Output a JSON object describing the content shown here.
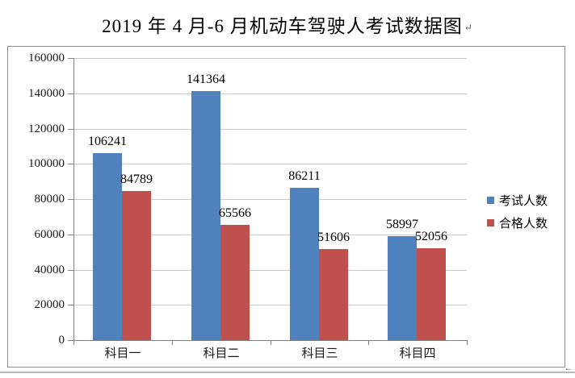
{
  "page": {
    "title": "2019 年 4 月-6 月机动车驾驶人考试数据图",
    "paragraph_mark": "↵",
    "end_mark": "←"
  },
  "chart_data": {
    "type": "bar",
    "title": "2019 年 4 月-6 月机动车驾驶人考试数据图",
    "categories": [
      "科目一",
      "科目二",
      "科目三",
      "科目四"
    ],
    "series": [
      {
        "name": "考试人数",
        "color": "#4F81BD",
        "values": [
          106241,
          141364,
          86211,
          58997
        ]
      },
      {
        "name": "合格人数",
        "color": "#C0504D",
        "values": [
          84789,
          65566,
          51606,
          52056
        ]
      }
    ],
    "xlabel": "",
    "ylabel": "",
    "ylim": [
      0,
      160000
    ],
    "ytick_step": 20000,
    "grid": true,
    "data_labels": true,
    "legend_position": "right"
  }
}
